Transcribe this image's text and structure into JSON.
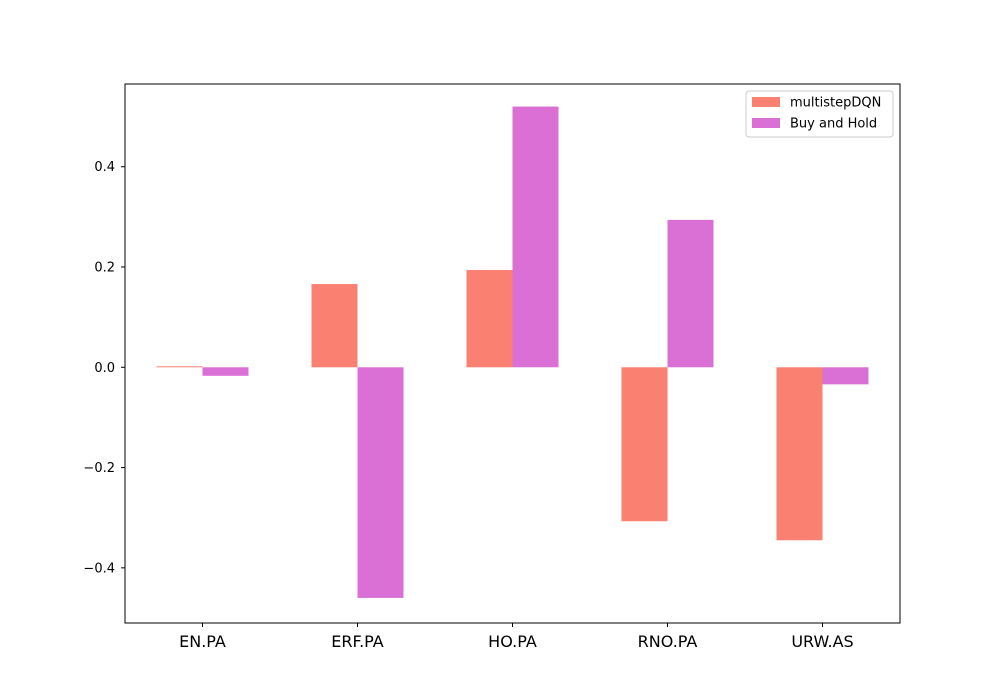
{
  "chart_data": {
    "type": "bar",
    "title": "",
    "xlabel": "",
    "ylabel": "",
    "categories": [
      "EN.PA",
      "ERF.PA",
      "HO.PA",
      "RNO.PA",
      "URW.AS"
    ],
    "series": [
      {
        "name": "multistepDQN",
        "color": "#fa8072",
        "values": [
          0.002,
          0.166,
          0.194,
          -0.307,
          -0.345
        ]
      },
      {
        "name": "Buy and Hold",
        "color": "#da70d6",
        "values": [
          -0.017,
          -0.46,
          0.52,
          0.294,
          -0.034
        ]
      }
    ],
    "ylim": [
      -0.51,
      0.565
    ],
    "yticks": [
      -0.4,
      -0.2,
      0.0,
      0.2,
      0.4
    ],
    "ytick_labels": [
      "−0.4",
      "−0.2",
      "0.0",
      "0.2",
      "0.4"
    ],
    "legend": {
      "position": "top-right"
    },
    "grid": false
  }
}
